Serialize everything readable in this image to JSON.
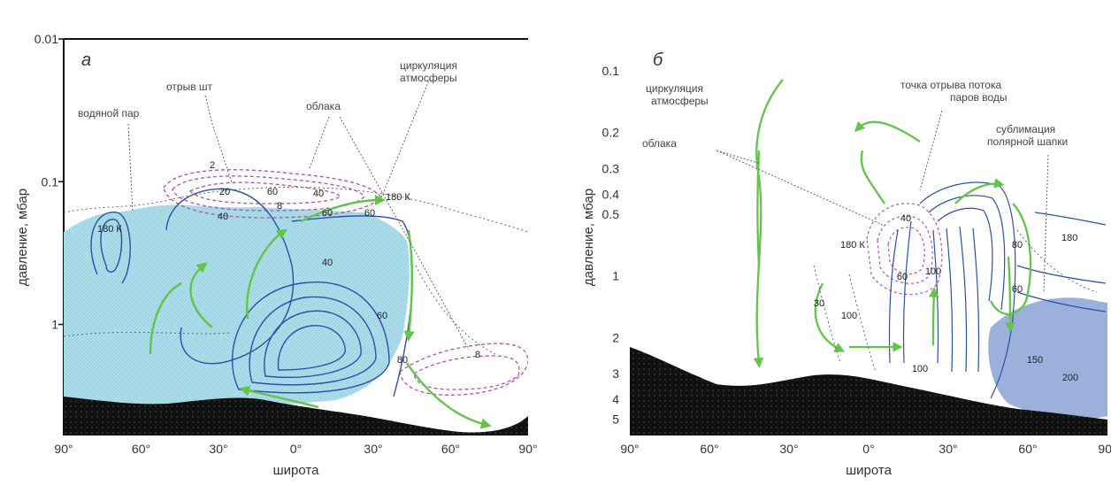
{
  "colors": {
    "water_vapor_fill": "#9fd4e2",
    "ice_cap_fill": "#90a9d8",
    "circulation": "#63c448",
    "streamlines": "#2c4fa8",
    "cloud_contours": "#b04fb0",
    "ground": "#111111",
    "grid_text": "#333333"
  },
  "chart_data": [
    {
      "type": "contour",
      "panel_label": "а",
      "xlabel": "широта",
      "ylabel": "давление, мбар",
      "x_ticks": [
        "90°",
        "60°",
        "30°",
        "0°",
        "30°",
        "60°",
        "90°"
      ],
      "x_values": [
        -90,
        -60,
        -30,
        0,
        30,
        60,
        90
      ],
      "y_ticks": [
        "0.01",
        "0.1",
        "1"
      ],
      "y_values": [
        0.01,
        0.1,
        1
      ],
      "y_scale": "log",
      "xlim": [
        -90,
        90
      ],
      "ylim": [
        6,
        0.01
      ],
      "annotations": [
        "водяной пар",
        "отрыв шт",
        "облака",
        "циркуляция атмосферы",
        "180 К",
        "180 К"
      ],
      "contour_labels": [
        "2",
        "20",
        "40",
        "60",
        "40",
        "60",
        "60",
        "8",
        "40",
        "60",
        "80",
        "8"
      ]
    },
    {
      "type": "contour",
      "panel_label": "б",
      "xlabel": "широта",
      "ylabel": "давление, мбар",
      "x_ticks": [
        "90°",
        "60°",
        "30°",
        "0°",
        "30°",
        "60°",
        "90°"
      ],
      "x_values": [
        -90,
        -60,
        -30,
        0,
        30,
        60,
        90
      ],
      "y_ticks": [
        "0.1",
        "0.2",
        "0.3",
        "0.4",
        "0.5",
        "1",
        "2",
        "3",
        "4",
        "5"
      ],
      "y_values": [
        0.1,
        0.2,
        0.3,
        0.4,
        0.5,
        1,
        2,
        3,
        4,
        5
      ],
      "y_scale": "log",
      "xlim": [
        -90,
        90
      ],
      "ylim": [
        6,
        0.07
      ],
      "annotations": [
        "циркуляция атмосферы",
        "облака",
        "точка отрыва потока паров воды",
        "сублимация полярной шапки",
        "180 К",
        "180"
      ],
      "contour_labels": [
        "40",
        "30",
        "100",
        "60",
        "100",
        "60",
        "80",
        "100",
        "150",
        "200"
      ]
    }
  ]
}
